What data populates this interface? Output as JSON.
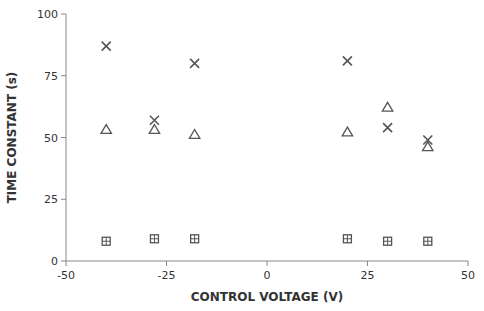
{
  "chart_data": {
    "type": "scatter",
    "xlabel": "CONTROL VOLTAGE (V)",
    "ylabel": "TIME CONSTANT (s)",
    "color": "#555555",
    "x": [
      -40,
      -28,
      -18,
      20,
      30,
      40
    ],
    "series": [
      {
        "marker": "x",
        "values": [
          87,
          57,
          80,
          81,
          54,
          49
        ]
      },
      {
        "marker": "triangle",
        "values": [
          53,
          53,
          51,
          52,
          62,
          46
        ]
      },
      {
        "marker": "square-plus",
        "values": [
          8,
          9,
          9,
          9,
          8,
          8
        ]
      }
    ],
    "xlim": [
      -50,
      50
    ],
    "ylim": [
      0,
      100
    ],
    "xticks": [
      -50,
      -25,
      0,
      25,
      50
    ],
    "yticks": [
      0,
      25,
      50,
      75,
      100
    ],
    "grid": false
  }
}
